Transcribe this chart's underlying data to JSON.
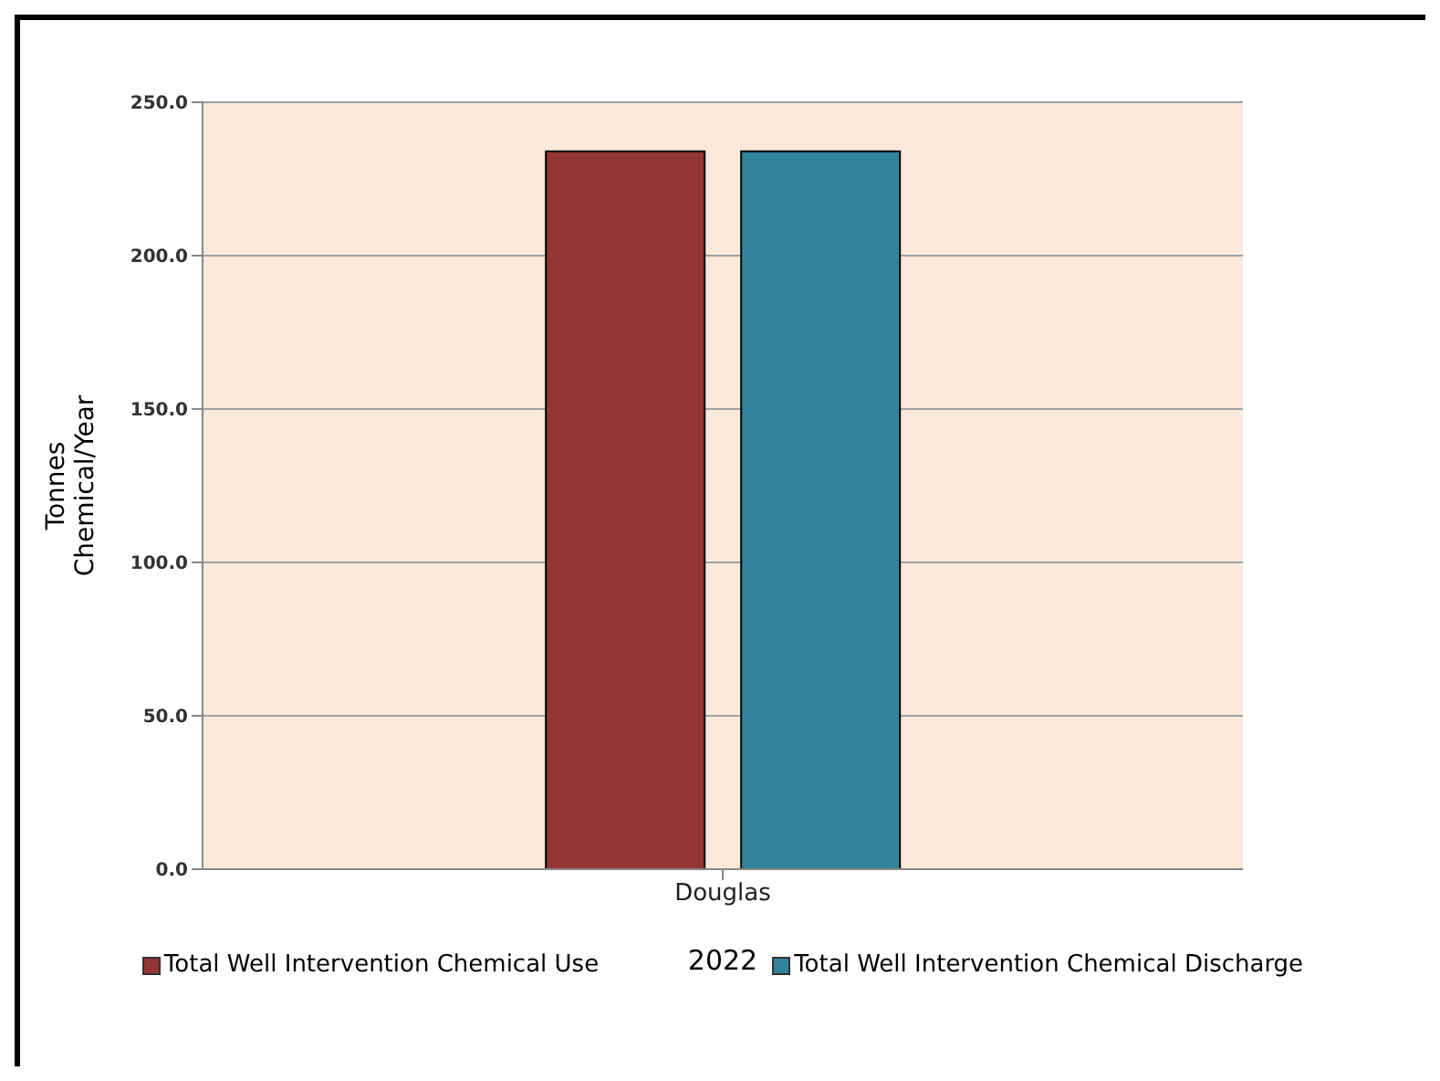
{
  "chart_data": {
    "type": "bar",
    "categories": [
      "Douglas"
    ],
    "xlabel": "2022",
    "ylabel": "Tonnes\nChemical/Year",
    "series": [
      {
        "name": "Total Well Intervention Chemical Use",
        "color": "#943634",
        "values": [
          234
        ]
      },
      {
        "name": "Total Well Intervention Chemical Discharge",
        "color": "#31849b",
        "values": [
          234
        ]
      }
    ],
    "ylim": [
      0,
      250
    ],
    "yticks": [
      {
        "value": 0,
        "label": "0.0"
      },
      {
        "value": 50,
        "label": "50.0"
      },
      {
        "value": 100,
        "label": "100.0"
      },
      {
        "value": 150,
        "label": "150.0"
      },
      {
        "value": 200,
        "label": "200.0"
      },
      {
        "value": 250,
        "label": "250.0"
      }
    ],
    "grid": "y",
    "legend": "bottom"
  }
}
